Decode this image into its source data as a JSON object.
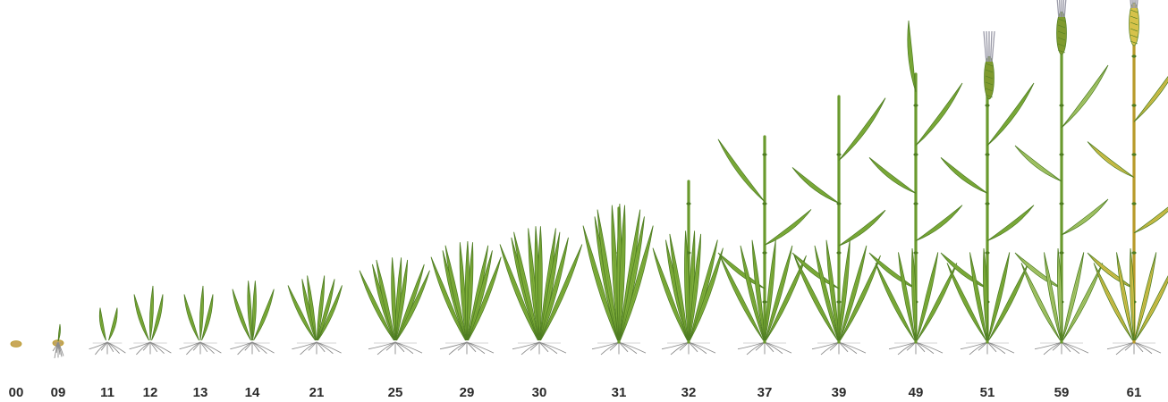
{
  "stages": [
    {
      "code": "00"
    },
    {
      "code": "09"
    },
    {
      "code": "11"
    },
    {
      "code": "12"
    },
    {
      "code": "13"
    },
    {
      "code": "14"
    },
    {
      "code": "21"
    },
    {
      "code": "25"
    },
    {
      "code": "29"
    },
    {
      "code": "30"
    },
    {
      "code": "31"
    },
    {
      "code": "32"
    },
    {
      "code": "37"
    },
    {
      "code": "39"
    },
    {
      "code": "49"
    },
    {
      "code": "51"
    },
    {
      "code": "59"
    },
    {
      "code": "61"
    }
  ],
  "colors": {
    "leaf": "#7fae3a",
    "leaf_dark": "#4f7d22",
    "leaf_light": "#a9c96a",
    "stem": "#6a9a2e",
    "root": "#8c8c8c",
    "seed": "#c9a85a",
    "yellow_leaf": "#d6c24a",
    "yellow_dark": "#b89a2a",
    "awn": "#9a9aa8",
    "ear": "#7f9a2e"
  }
}
